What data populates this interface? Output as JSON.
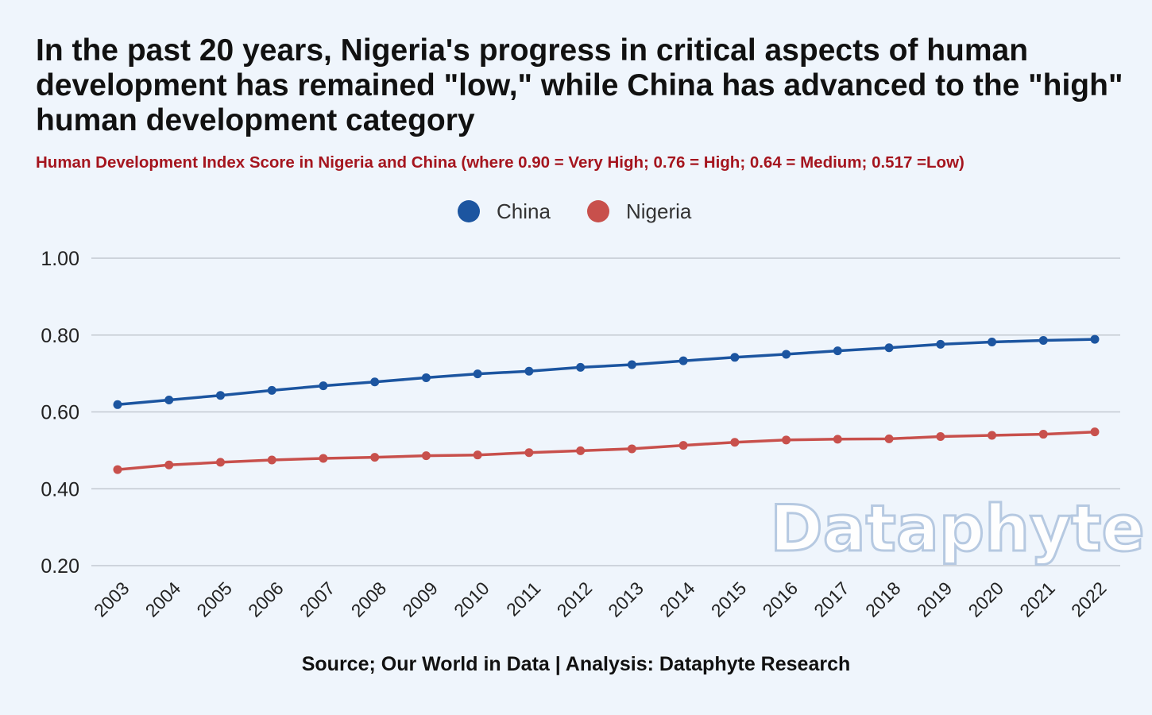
{
  "chart_data": {
    "type": "line",
    "title": "In the past 20 years, Nigeria's progress in critical aspects of human development has remained \"low,\" while China has advanced to the \"high\" human development category",
    "subtitle": "Human Development Index Score in Nigeria and China (where 0.90 = Very High; 0.76 = High; 0.64 = Medium; 0.517 =Low)",
    "x": [
      "2003",
      "2004",
      "2005",
      "2006",
      "2007",
      "2008",
      "2009",
      "2010",
      "2011",
      "2012",
      "2013",
      "2014",
      "2015",
      "2016",
      "2017",
      "2018",
      "2019",
      "2020",
      "2021",
      "2022"
    ],
    "series": [
      {
        "name": "China",
        "color": "#1c55a0",
        "values": [
          0.619,
          0.631,
          0.643,
          0.656,
          0.668,
          0.678,
          0.689,
          0.699,
          0.706,
          0.716,
          0.723,
          0.733,
          0.742,
          0.75,
          0.759,
          0.767,
          0.776,
          0.782,
          0.786,
          0.789
        ]
      },
      {
        "name": "Nigeria",
        "color": "#c8504c",
        "values": [
          0.45,
          0.462,
          0.469,
          0.475,
          0.479,
          0.482,
          0.486,
          0.488,
          0.494,
          0.499,
          0.504,
          0.513,
          0.521,
          0.527,
          0.529,
          0.53,
          0.536,
          0.539,
          0.542,
          0.548
        ]
      }
    ],
    "ylim": [
      0.2,
      1.0
    ],
    "yticks": [
      "0.20",
      "0.40",
      "0.60",
      "0.80",
      "1.00"
    ],
    "grid": true,
    "legend_position": "top-center",
    "watermark": "Dataphyte"
  },
  "footer": {
    "source": "Source; Our World in Data | Analysis: Dataphyte Research"
  }
}
